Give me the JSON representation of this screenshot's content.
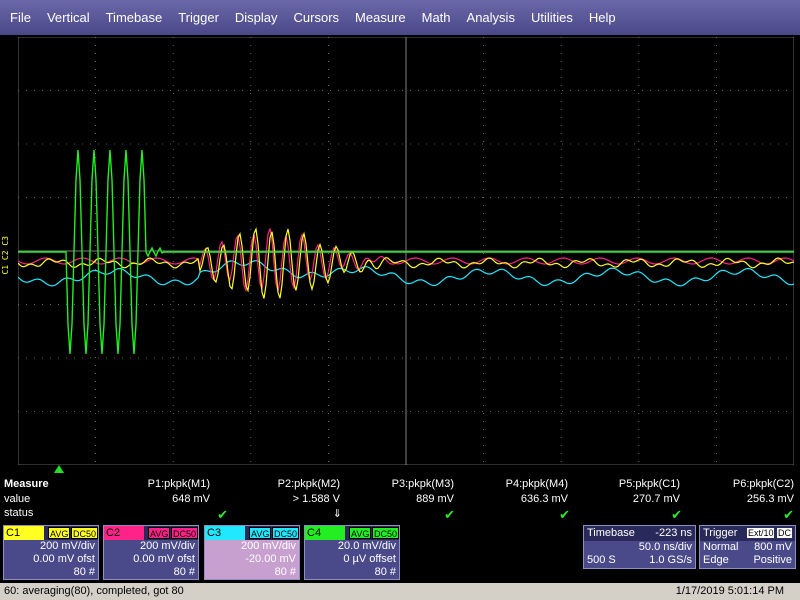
{
  "menu": [
    "File",
    "Vertical",
    "Timebase",
    "Trigger",
    "Display",
    "Cursors",
    "Measure",
    "Math",
    "Analysis",
    "Utilities",
    "Help"
  ],
  "channel_markers": "C1 C2 C3",
  "measure": {
    "title": "Measure",
    "row_value": "value",
    "row_status": "status",
    "params": [
      {
        "name": "P1:pkpk(M1)",
        "value": "648 mV",
        "status": "ok"
      },
      {
        "name": "P2:pkpk(M2)",
        "value": "> 1.588 V",
        "status": "down-arrow"
      },
      {
        "name": "P3:pkpk(M3)",
        "value": "889 mV",
        "status": "ok"
      },
      {
        "name": "P4:pkpk(M4)",
        "value": "636.3 mV",
        "status": "ok"
      },
      {
        "name": "P5:pkpk(C1)",
        "value": "270.7 mV",
        "status": "ok"
      },
      {
        "name": "P6:pkpk(C2)",
        "value": "256.3 mV",
        "status": "ok"
      }
    ],
    "check_glyph": "✔",
    "arrow_glyph": "⇓"
  },
  "channels": [
    {
      "name": "C1",
      "mode": "AVG",
      "coupling": "DC50",
      "color": "#ffff22",
      "scale": "200 mV/div",
      "offset": "0.00 mV ofst",
      "count": "80 #"
    },
    {
      "name": "C2",
      "mode": "AVG",
      "coupling": "DC50",
      "color": "#ff2288",
      "scale": "200 mV/div",
      "offset": "0.00 mV ofst",
      "count": "80 #"
    },
    {
      "name": "C3",
      "mode": "AVG",
      "coupling": "DC50",
      "color": "#22e8ff",
      "scale": "200 mV/div",
      "offset": "-20.00 mV",
      "count": "80 #"
    },
    {
      "name": "C4",
      "mode": "AVG",
      "coupling": "DC50",
      "color": "#22ee22",
      "scale": "20.0 mV/div",
      "offset": "0 µV offset",
      "count": "80 #"
    }
  ],
  "timebase": {
    "label": "Timebase",
    "delay": "-223 ns",
    "scale": "50.0 ns/div",
    "samples": "500 S",
    "rate": "1.0 GS/s"
  },
  "trigger": {
    "label": "Trigger",
    "source": "Ext/10",
    "coupling": "DC",
    "mode": "Normal",
    "level": "800 mV",
    "type": "Edge",
    "slope": "Positive"
  },
  "status": {
    "left": "60: averaging(80), completed, got 80",
    "right": "1/17/2019 5:01:14 PM"
  },
  "colors": {
    "c1": "#ffff22",
    "c2": "#ff2288",
    "c3": "#22e8ff",
    "c4": "#22ee22",
    "grid": "#808080"
  }
}
